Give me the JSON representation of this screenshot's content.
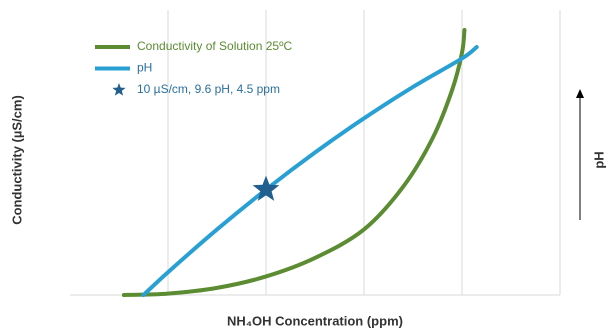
{
  "chart_data": {
    "type": "line",
    "x_label": "NH₄OH Concentration (ppm)",
    "y_label": "Conductivity (µS/cm)",
    "y2_label": "pH",
    "xlim": [
      0,
      100
    ],
    "ylim": [
      0,
      100
    ],
    "xticks": [
      20,
      40,
      60,
      80,
      100
    ],
    "grid": true,
    "legend": "upper left",
    "series": [
      {
        "name": "Conductivity of Solution 25ºC",
        "color": "#5b8c32",
        "x": [
          11,
          20,
          30,
          40,
          50,
          60,
          68,
          74,
          78,
          80,
          80.5
        ],
        "values": [
          0,
          0.5,
          2.5,
          6.5,
          13,
          23,
          38,
          55,
          72,
          85,
          93
        ]
      },
      {
        "name": "pH",
        "color": "#29a0d4",
        "x": [
          15,
          20,
          30,
          40,
          50,
          60,
          70,
          80,
          83
        ],
        "values": [
          0,
          8,
          23,
          37,
          50,
          62,
          73,
          83,
          87
        ]
      },
      {
        "name": "10 µS/cm, 9.6 pH, 4.5 ppm",
        "color": "#215f8e",
        "marker": "star",
        "x": [
          40
        ],
        "values": [
          37
        ]
      }
    ]
  }
}
